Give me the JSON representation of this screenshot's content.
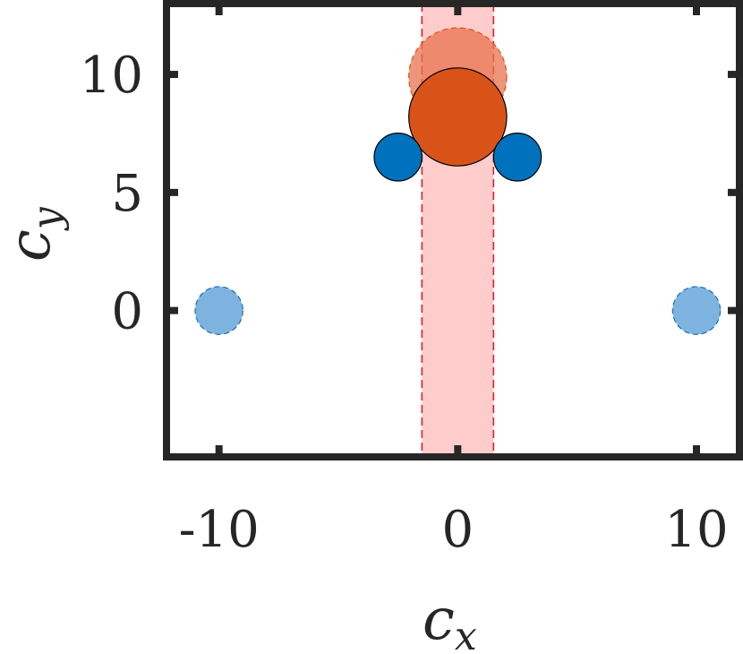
{
  "chart_data": {
    "type": "scatter",
    "title": "",
    "xlabel": "c",
    "xlabel_sub": "x",
    "ylabel": "c",
    "ylabel_sub": "y",
    "xlim": [
      -12.2,
      11.8
    ],
    "ylim": [
      -6.2,
      13
    ],
    "xticks": [
      -10,
      0,
      10
    ],
    "xtick_labels": [
      "-10",
      "0",
      "10"
    ],
    "yticks": [
      0,
      5,
      10
    ],
    "ytick_labels": [
      "0",
      "5",
      "10"
    ],
    "grid": false,
    "band": {
      "x_range": [
        -1.5,
        1.5
      ],
      "fill": "#ff9999",
      "stroke": "#e0202a"
    },
    "points": [
      {
        "name": "faded-orange-disk",
        "x": 0,
        "y": 9.9,
        "r": 2.05,
        "fill": "#e8734f",
        "opacity": 0.75,
        "stroke": "#d95319",
        "dashed": true
      },
      {
        "name": "orange-disk",
        "x": 0,
        "y": 8.2,
        "r": 2.05,
        "fill": "#d95319",
        "opacity": 1,
        "stroke": "#000000",
        "dashed": false
      },
      {
        "name": "blue-disk-left",
        "x": -2.5,
        "y": 6.5,
        "r": 1.0,
        "fill": "#0072bd",
        "opacity": 1,
        "stroke": "#000000",
        "dashed": false
      },
      {
        "name": "blue-disk-right",
        "x": 2.5,
        "y": 6.5,
        "r": 1.0,
        "fill": "#0072bd",
        "opacity": 1,
        "stroke": "#000000",
        "dashed": false
      },
      {
        "name": "light-blue-disk-left",
        "x": -10,
        "y": 0,
        "r": 1.0,
        "fill": "#7fb3df",
        "opacity": 1,
        "stroke": "#1a6fb3",
        "dashed": true
      },
      {
        "name": "light-blue-disk-right",
        "x": 10,
        "y": 0,
        "r": 1.0,
        "fill": "#7fb3df",
        "opacity": 1,
        "stroke": "#1a6fb3",
        "dashed": true
      }
    ],
    "colors": {
      "axis": "#262626",
      "orange": "#d95319",
      "blue": "#0072bd",
      "light_blue": "#7fb3df"
    }
  }
}
